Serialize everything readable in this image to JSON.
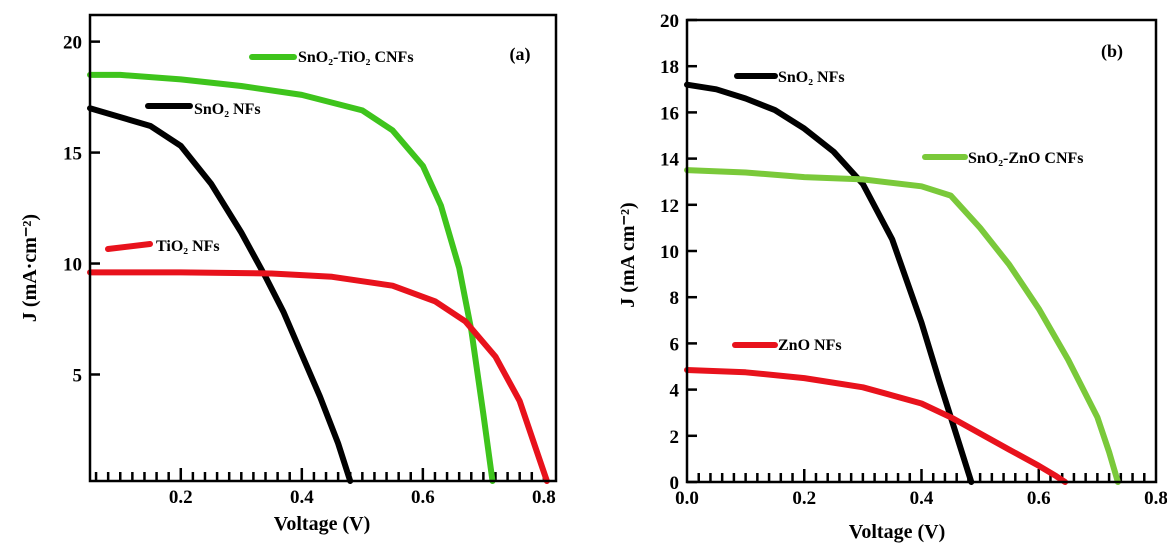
{
  "colors": {
    "black": "#000000",
    "green": "#3ec41c",
    "red": "#e8121c",
    "lime": "#7ac93a"
  },
  "chart_data": [
    {
      "type": "line",
      "panel_label": "(a)",
      "xlabel": "Voltage (V)",
      "ylabel": "J (mA·cm⁻²)",
      "xlim": [
        0.05,
        0.82
      ],
      "ylim": [
        0.2,
        21.2
      ],
      "xticks": [
        0.2,
        0.4,
        0.6,
        0.8
      ],
      "xtick_labels": [
        "0.2",
        "0.4",
        "0.6",
        "0.8"
      ],
      "yticks": [
        5,
        10,
        15,
        20
      ],
      "ytick_labels": [
        "5",
        "10",
        "15",
        "20"
      ],
      "series": [
        {
          "name": "SnO₂-TiO₂ CNFs",
          "color": "#3ec41c",
          "x": [
            0.05,
            0.1,
            0.2,
            0.3,
            0.4,
            0.5,
            0.55,
            0.6,
            0.63,
            0.66,
            0.68,
            0.7,
            0.715
          ],
          "y": [
            18.5,
            18.5,
            18.3,
            18.0,
            17.6,
            16.9,
            16.0,
            14.4,
            12.6,
            9.8,
            7.0,
            3.2,
            0.2
          ]
        },
        {
          "name": "SnO₂ NFs",
          "color": "#000000",
          "x": [
            0.05,
            0.1,
            0.15,
            0.2,
            0.25,
            0.3,
            0.34,
            0.37,
            0.4,
            0.43,
            0.46,
            0.48
          ],
          "y": [
            17.0,
            16.6,
            16.2,
            15.3,
            13.6,
            11.4,
            9.4,
            7.8,
            5.9,
            4.0,
            1.9,
            0.2
          ]
        },
        {
          "name": "TiO₂ NFs",
          "color": "#e8121c",
          "x": [
            0.05,
            0.2,
            0.35,
            0.45,
            0.55,
            0.62,
            0.67,
            0.72,
            0.76,
            0.79,
            0.805
          ],
          "y": [
            9.6,
            9.6,
            9.55,
            9.4,
            9.0,
            8.3,
            7.4,
            5.8,
            3.8,
            1.4,
            0.2
          ]
        }
      ]
    },
    {
      "type": "line",
      "panel_label": "(b)",
      "xlabel": "Voltage (V)",
      "ylabel": "J (mA cm⁻²)",
      "xlim": [
        0.0,
        0.8
      ],
      "ylim": [
        0,
        20
      ],
      "xticks": [
        0.0,
        0.2,
        0.4,
        0.6,
        0.8
      ],
      "xtick_labels": [
        "0.0",
        "0.2",
        "0.4",
        "0.6",
        "0.8"
      ],
      "yticks": [
        0,
        2,
        4,
        6,
        8,
        10,
        12,
        14,
        16,
        18,
        20
      ],
      "ytick_labels": [
        "0",
        "2",
        "4",
        "6",
        "8",
        "10",
        "12",
        "14",
        "16",
        "18",
        "20"
      ],
      "series": [
        {
          "name": "SnO₂ NFs",
          "color": "#000000",
          "x": [
            0.0,
            0.05,
            0.1,
            0.15,
            0.2,
            0.25,
            0.3,
            0.35,
            0.4,
            0.43,
            0.46,
            0.485
          ],
          "y": [
            17.2,
            17.0,
            16.6,
            16.1,
            15.3,
            14.3,
            12.9,
            10.5,
            6.9,
            4.4,
            2.0,
            0.0
          ]
        },
        {
          "name": "SnO₂-ZnO CNFs",
          "color": "#7ac93a",
          "x": [
            0.0,
            0.1,
            0.2,
            0.3,
            0.4,
            0.45,
            0.5,
            0.55,
            0.6,
            0.65,
            0.7,
            0.72,
            0.735
          ],
          "y": [
            13.5,
            13.4,
            13.2,
            13.1,
            12.8,
            12.4,
            11.0,
            9.4,
            7.5,
            5.3,
            2.8,
            1.3,
            0.0
          ]
        },
        {
          "name": "ZnO NFs",
          "color": "#e8121c",
          "x": [
            0.0,
            0.1,
            0.2,
            0.3,
            0.4,
            0.45,
            0.5,
            0.55,
            0.6,
            0.63,
            0.645
          ],
          "y": [
            4.85,
            4.75,
            4.5,
            4.1,
            3.4,
            2.8,
            2.1,
            1.4,
            0.7,
            0.25,
            0.0
          ]
        }
      ]
    }
  ]
}
